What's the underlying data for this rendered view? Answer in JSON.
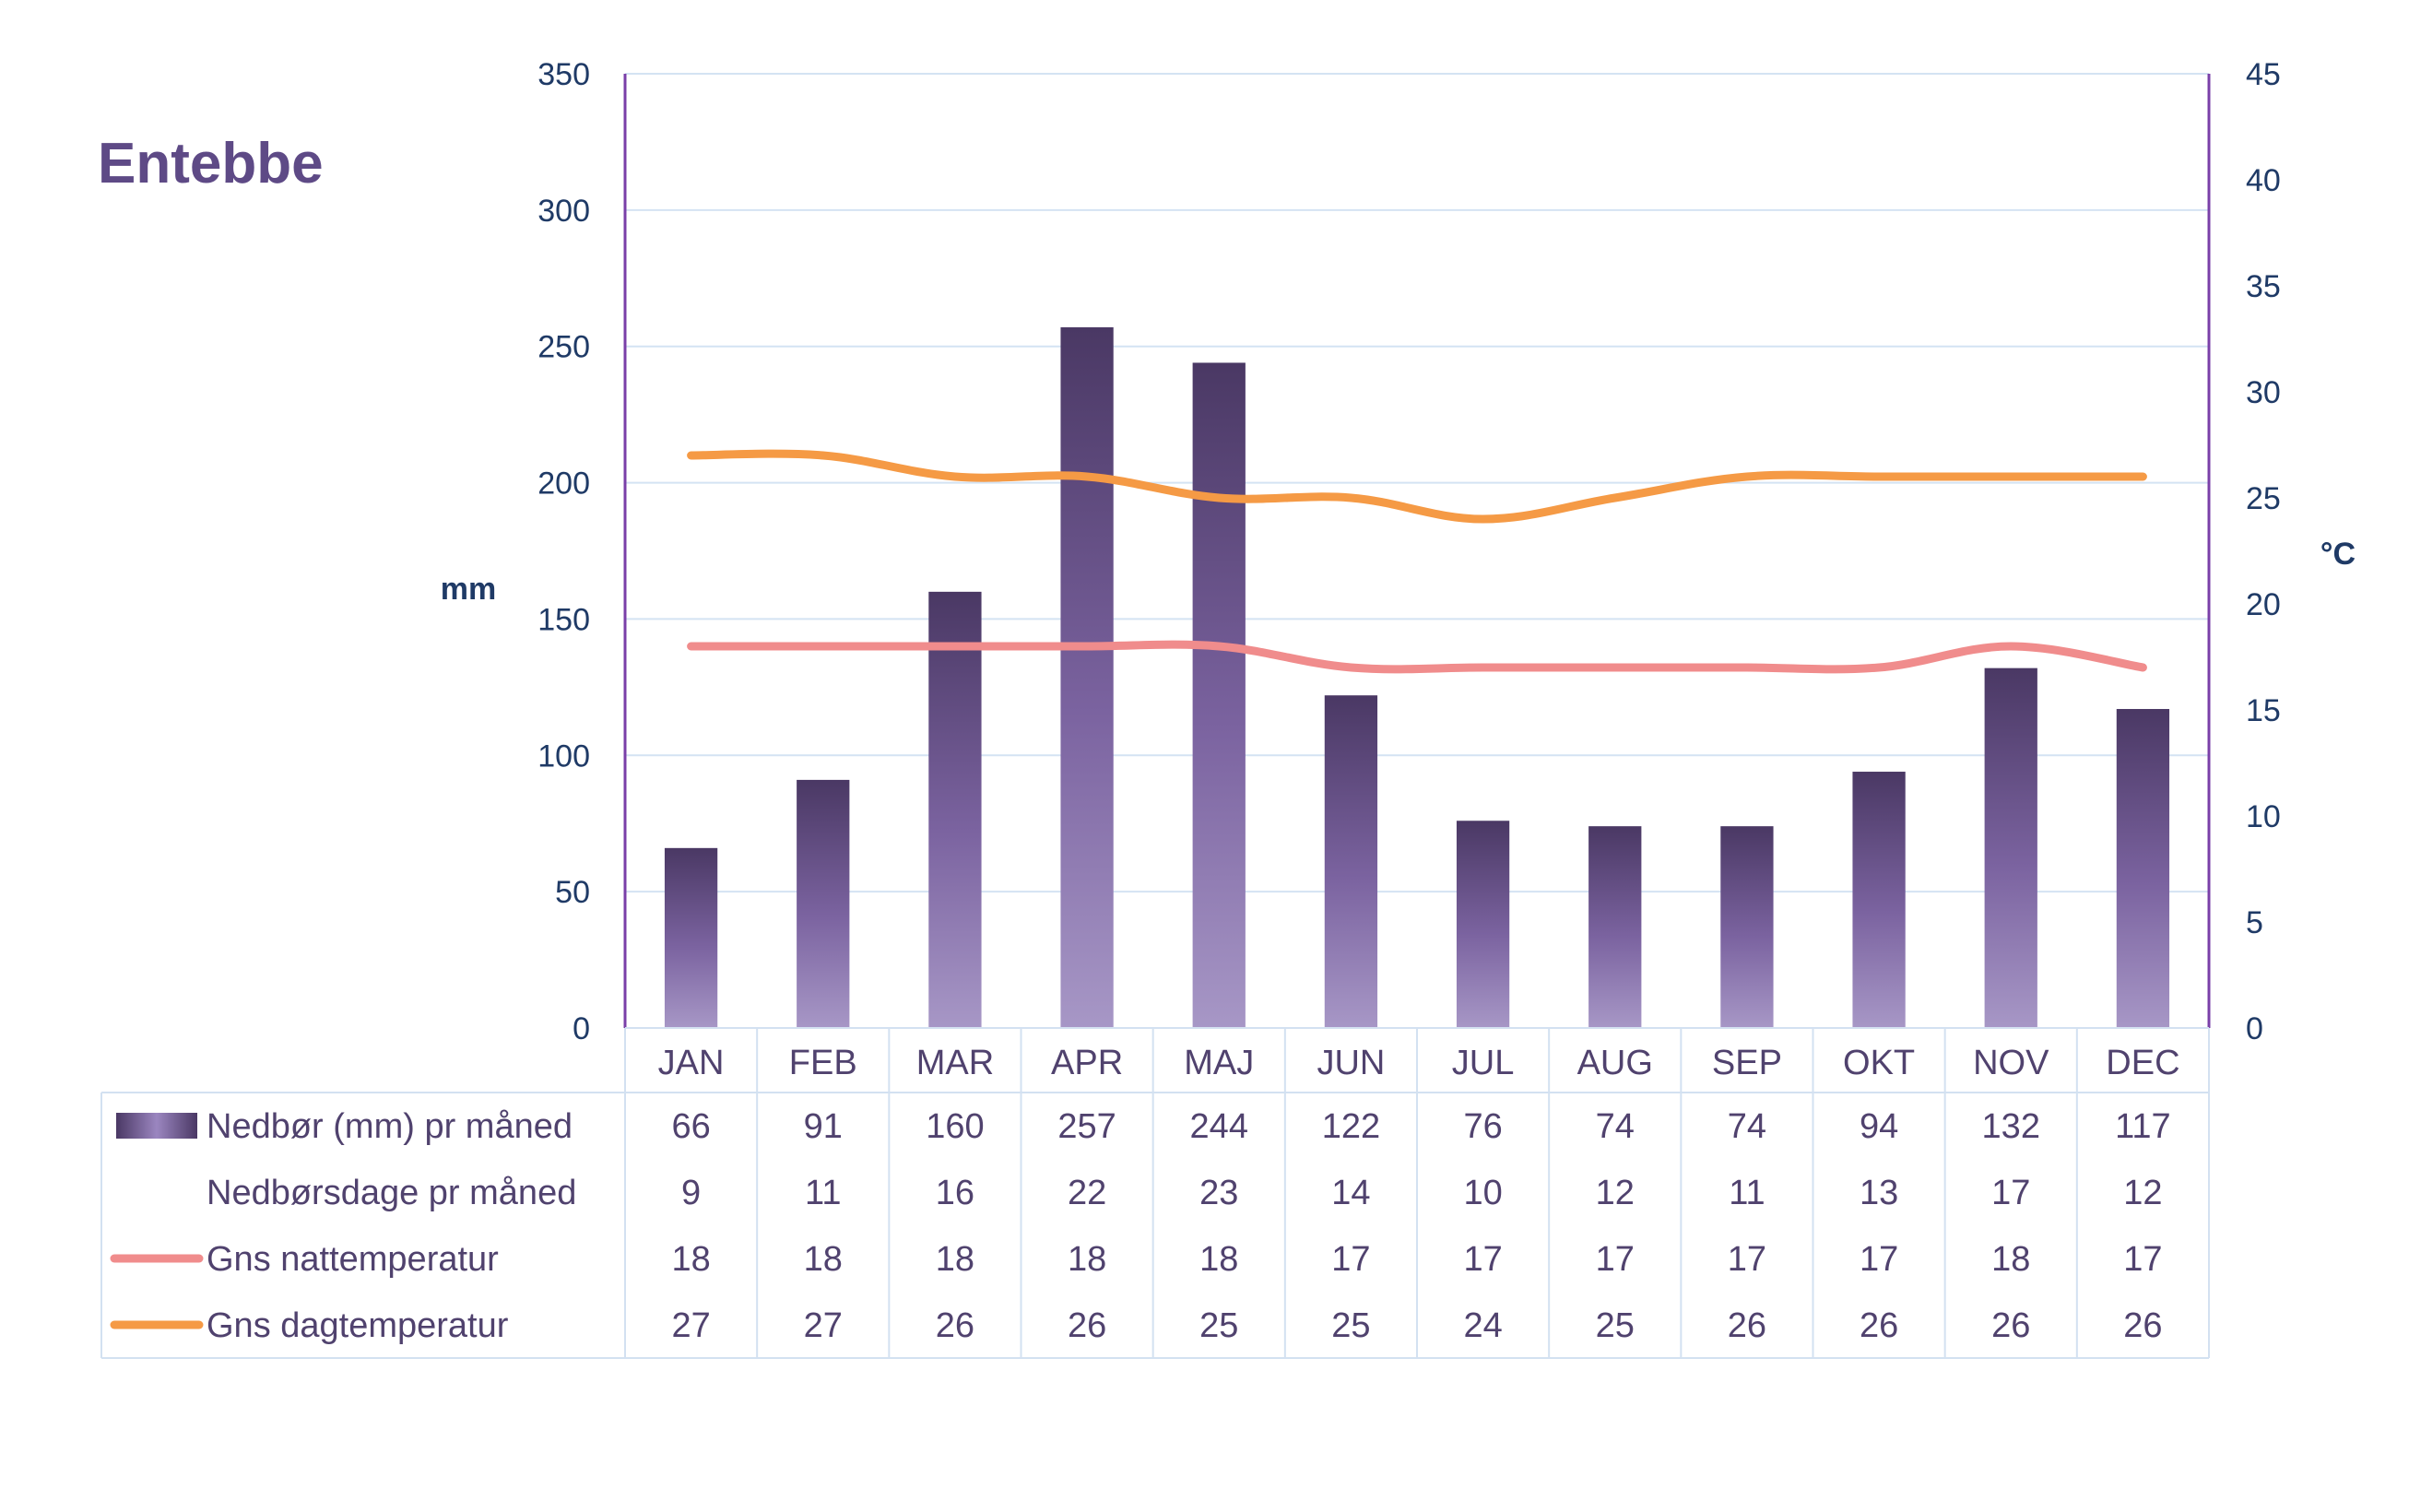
{
  "chart_data": {
    "type": "bar",
    "title": "Entebbe",
    "categories": [
      "JAN",
      "FEB",
      "MAR",
      "APR",
      "MAJ",
      "JUN",
      "JUL",
      "AUG",
      "SEP",
      "OKT",
      "NOV",
      "DEC"
    ],
    "y_left": {
      "label": "mm",
      "range": [
        0,
        350
      ],
      "ticks": [
        "0",
        "50",
        "100",
        "150",
        "200",
        "250",
        "300",
        "350"
      ]
    },
    "y_right": {
      "label": "°C",
      "range": [
        0,
        45
      ],
      "ticks": [
        "0",
        "5",
        "10",
        "15",
        "20",
        "25",
        "30",
        "35",
        "40",
        "45"
      ]
    },
    "grid": true,
    "series": [
      {
        "name": "Nedbør (mm) pr måned",
        "type": "bar",
        "axis": "left",
        "values": [
          66,
          91,
          160,
          257,
          244,
          122,
          76,
          74,
          74,
          94,
          132,
          117
        ]
      },
      {
        "name": "Nedbørsdage pr måned",
        "type": "table",
        "axis": "none",
        "values": [
          9,
          11,
          16,
          22,
          23,
          14,
          10,
          12,
          11,
          13,
          17,
          12
        ]
      },
      {
        "name": "Gns nattemperatur",
        "type": "line",
        "axis": "right",
        "values": [
          18,
          18,
          18,
          18,
          18,
          17,
          17,
          17,
          17,
          17,
          18,
          17
        ]
      },
      {
        "name": "Gns dagtemperatur",
        "type": "line",
        "axis": "right",
        "values": [
          27,
          27,
          26,
          26,
          25,
          25,
          24,
          25,
          26,
          26,
          26,
          26
        ]
      }
    ],
    "colors": {
      "bar_top": "#4a3864",
      "bar_bottom": "#a797c6",
      "night_line": "#f08c8c",
      "day_line": "#f59a45",
      "axis": "#7a3fa8",
      "grid": "#d4e3f3",
      "table_border": "#d3e1f1",
      "tick_text": "#1f3a66",
      "cell_text": "#50426e",
      "title": "#5e4a86"
    }
  }
}
